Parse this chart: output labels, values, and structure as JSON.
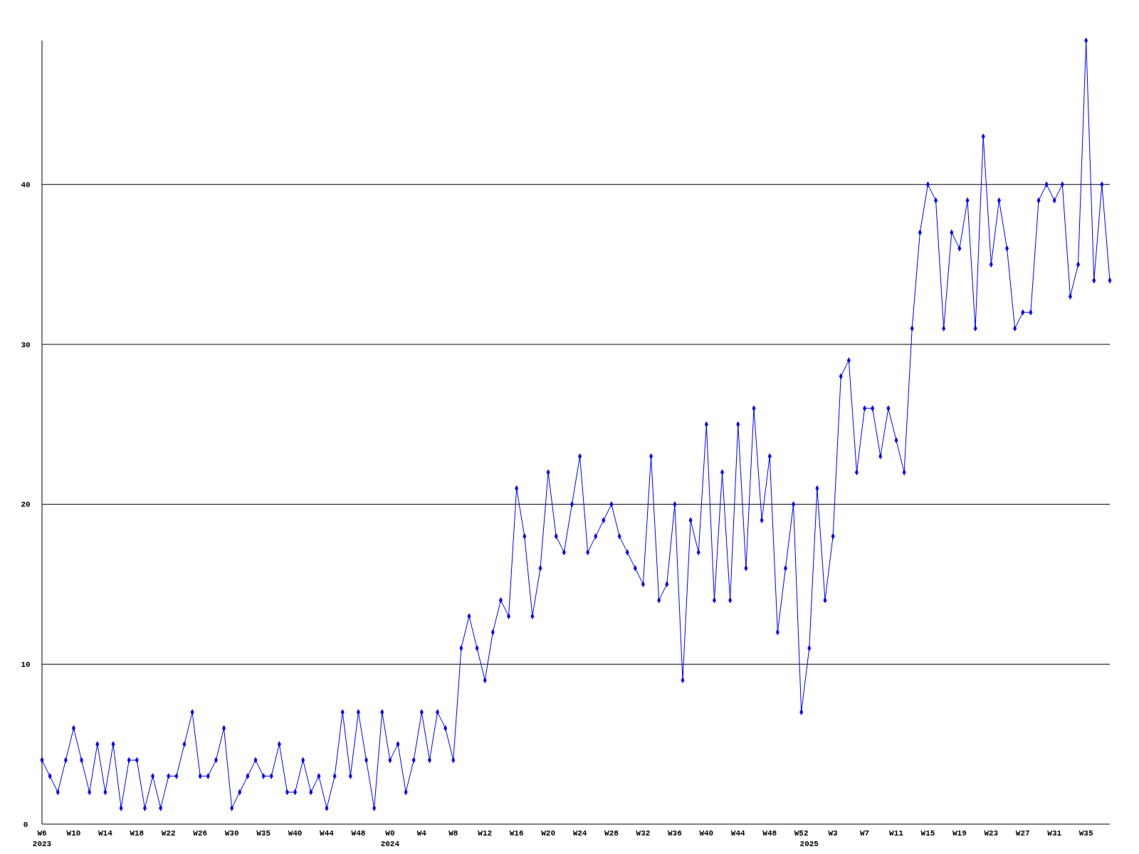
{
  "chart_data": {
    "type": "line",
    "categories": [
      "W6\n2023",
      null,
      null,
      null,
      "W10",
      null,
      null,
      null,
      "W14",
      null,
      null,
      null,
      "W18",
      null,
      null,
      null,
      "W22",
      null,
      null,
      null,
      "W26",
      null,
      null,
      null,
      "W30",
      null,
      null,
      null,
      "W35",
      null,
      null,
      null,
      "W40",
      null,
      null,
      null,
      "W44",
      null,
      null,
      null,
      "W48",
      null,
      null,
      null,
      "W0\n2024",
      null,
      null,
      null,
      "W4",
      null,
      null,
      null,
      "W8",
      null,
      null,
      null,
      "W12",
      null,
      null,
      null,
      "W16",
      null,
      null,
      null,
      "W20",
      null,
      null,
      null,
      "W24",
      null,
      null,
      null,
      "W28",
      null,
      null,
      null,
      "W32",
      null,
      null,
      null,
      "W36",
      null,
      null,
      null,
      "W40",
      null,
      null,
      null,
      "W44",
      null,
      null,
      null,
      "W48",
      null,
      null,
      null,
      "W52",
      "\n2025",
      null,
      null,
      "W3",
      null,
      null,
      null,
      "W7",
      null,
      null,
      null,
      "W11",
      null,
      null,
      null,
      "W15",
      null,
      null,
      null,
      "W19",
      null,
      null,
      null,
      "W23",
      null,
      null,
      null,
      "W27",
      null,
      null,
      null,
      "W31",
      null,
      null,
      null,
      "W35",
      null,
      null,
      null
    ],
    "series": [
      {
        "color": "#0000ff",
        "values": [
          4,
          3,
          2,
          4,
          6,
          4,
          2,
          5,
          2,
          5,
          1,
          4,
          4,
          1,
          3,
          1,
          3,
          3,
          5,
          7,
          3,
          3,
          4,
          6,
          1,
          2,
          3,
          4,
          3,
          3,
          5,
          2,
          2,
          4,
          2,
          3,
          1,
          3,
          7,
          3,
          7,
          4,
          1,
          7,
          4,
          5,
          2,
          4,
          7,
          4,
          7,
          6,
          4,
          11,
          13,
          11,
          9,
          12,
          14,
          13,
          21,
          18,
          13,
          16,
          22,
          18,
          17,
          20,
          23,
          17,
          18,
          19,
          20,
          18,
          17,
          16,
          15,
          23,
          14,
          15,
          20,
          9,
          19,
          17,
          25,
          14,
          22,
          14,
          25,
          16,
          26,
          19,
          23,
          12,
          16,
          20,
          7,
          11,
          21,
          14,
          18,
          28,
          29,
          22,
          26,
          26,
          23,
          26,
          24,
          22,
          31,
          37,
          40,
          39,
          31,
          37,
          36,
          39,
          31,
          43,
          35,
          39,
          36,
          31,
          32,
          32,
          39,
          40,
          39,
          40,
          33,
          35,
          49,
          34,
          40,
          34
        ]
      }
    ],
    "ylim": [
      0,
      49
    ],
    "yticks": [
      0,
      10,
      20,
      30,
      40
    ],
    "grid": "y",
    "marker": "diamond",
    "line_style": "solid"
  }
}
